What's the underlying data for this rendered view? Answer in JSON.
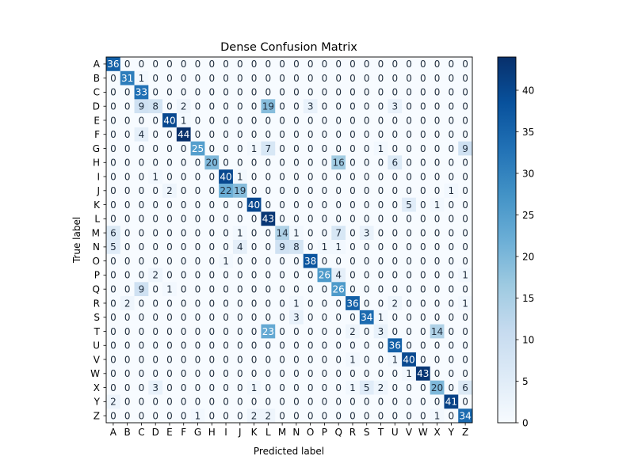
{
  "chart_data": {
    "type": "heatmap",
    "title": "Dense Confusion Matrix",
    "xlabel": "Predicted label",
    "ylabel": "True label",
    "x_categories": [
      "A",
      "B",
      "C",
      "D",
      "E",
      "F",
      "G",
      "H",
      "I",
      "J",
      "K",
      "L",
      "M",
      "N",
      "O",
      "P",
      "Q",
      "R",
      "S",
      "T",
      "U",
      "V",
      "W",
      "X",
      "Y",
      "Z"
    ],
    "y_categories": [
      "A",
      "B",
      "C",
      "D",
      "E",
      "F",
      "G",
      "H",
      "I",
      "J",
      "K",
      "L",
      "M",
      "N",
      "O",
      "P",
      "Q",
      "R",
      "S",
      "T",
      "U",
      "V",
      "W",
      "X",
      "Y",
      "Z"
    ],
    "values": [
      [
        36,
        0,
        0,
        0,
        0,
        0,
        0,
        0,
        0,
        0,
        0,
        0,
        0,
        0,
        0,
        0,
        0,
        0,
        0,
        0,
        0,
        0,
        0,
        0,
        0,
        0
      ],
      [
        0,
        31,
        1,
        0,
        0,
        0,
        0,
        0,
        0,
        0,
        0,
        0,
        0,
        0,
        0,
        0,
        0,
        0,
        0,
        0,
        0,
        0,
        0,
        0,
        0,
        0
      ],
      [
        0,
        0,
        33,
        0,
        0,
        0,
        0,
        0,
        0,
        0,
        0,
        0,
        0,
        0,
        0,
        0,
        0,
        0,
        0,
        0,
        0,
        0,
        0,
        0,
        0,
        0
      ],
      [
        0,
        0,
        9,
        8,
        0,
        2,
        0,
        0,
        0,
        0,
        0,
        19,
        0,
        0,
        3,
        0,
        0,
        0,
        0,
        0,
        3,
        0,
        0,
        0,
        0,
        0
      ],
      [
        0,
        0,
        0,
        0,
        40,
        1,
        0,
        0,
        0,
        0,
        0,
        0,
        0,
        0,
        0,
        0,
        0,
        0,
        0,
        0,
        0,
        0,
        0,
        0,
        0,
        0
      ],
      [
        0,
        0,
        4,
        0,
        0,
        44,
        0,
        0,
        0,
        0,
        0,
        0,
        0,
        0,
        0,
        0,
        0,
        0,
        0,
        0,
        0,
        0,
        0,
        0,
        0,
        0
      ],
      [
        0,
        0,
        0,
        0,
        0,
        0,
        25,
        0,
        0,
        0,
        1,
        7,
        0,
        0,
        0,
        0,
        0,
        0,
        0,
        1,
        0,
        0,
        0,
        0,
        0,
        9
      ],
      [
        0,
        0,
        0,
        0,
        0,
        0,
        0,
        20,
        0,
        0,
        0,
        0,
        0,
        0,
        0,
        0,
        16,
        0,
        0,
        0,
        6,
        0,
        0,
        0,
        0,
        0
      ],
      [
        0,
        0,
        0,
        1,
        0,
        0,
        0,
        0,
        40,
        1,
        0,
        0,
        0,
        0,
        0,
        0,
        0,
        0,
        0,
        0,
        0,
        0,
        0,
        0,
        0,
        0
      ],
      [
        0,
        0,
        0,
        0,
        2,
        0,
        0,
        0,
        22,
        19,
        0,
        0,
        0,
        0,
        0,
        0,
        0,
        0,
        0,
        0,
        0,
        0,
        0,
        0,
        1,
        0
      ],
      [
        0,
        0,
        0,
        0,
        0,
        0,
        0,
        0,
        0,
        0,
        40,
        0,
        0,
        0,
        0,
        0,
        0,
        0,
        0,
        0,
        0,
        5,
        0,
        1,
        0,
        0
      ],
      [
        0,
        0,
        0,
        0,
        0,
        0,
        0,
        0,
        0,
        0,
        0,
        43,
        0,
        0,
        0,
        0,
        0,
        0,
        0,
        0,
        0,
        0,
        0,
        0,
        0,
        0
      ],
      [
        6,
        0,
        0,
        0,
        0,
        0,
        0,
        0,
        0,
        1,
        0,
        0,
        14,
        1,
        0,
        0,
        7,
        0,
        3,
        0,
        0,
        0,
        0,
        0,
        0,
        0
      ],
      [
        5,
        0,
        0,
        0,
        0,
        0,
        0,
        0,
        0,
        4,
        0,
        0,
        9,
        8,
        0,
        1,
        1,
        0,
        0,
        0,
        0,
        0,
        0,
        0,
        0,
        0
      ],
      [
        0,
        0,
        0,
        0,
        0,
        0,
        0,
        0,
        1,
        0,
        0,
        0,
        0,
        0,
        38,
        0,
        0,
        0,
        0,
        0,
        0,
        0,
        0,
        0,
        0,
        0
      ],
      [
        0,
        0,
        0,
        2,
        0,
        0,
        0,
        0,
        0,
        0,
        0,
        0,
        0,
        0,
        0,
        26,
        4,
        0,
        0,
        0,
        0,
        0,
        0,
        0,
        0,
        1
      ],
      [
        0,
        0,
        9,
        0,
        1,
        0,
        0,
        0,
        0,
        0,
        0,
        0,
        0,
        0,
        0,
        0,
        26,
        0,
        0,
        0,
        0,
        0,
        0,
        0,
        0,
        0
      ],
      [
        0,
        2,
        0,
        0,
        0,
        0,
        0,
        0,
        0,
        0,
        0,
        0,
        0,
        1,
        0,
        0,
        0,
        36,
        0,
        0,
        2,
        0,
        0,
        0,
        0,
        1
      ],
      [
        0,
        0,
        0,
        0,
        0,
        0,
        0,
        0,
        0,
        0,
        0,
        0,
        0,
        3,
        0,
        0,
        0,
        0,
        34,
        1,
        0,
        0,
        0,
        0,
        0,
        0
      ],
      [
        0,
        0,
        0,
        0,
        0,
        0,
        0,
        0,
        0,
        0,
        0,
        23,
        0,
        0,
        0,
        0,
        0,
        2,
        0,
        3,
        0,
        0,
        0,
        14,
        0,
        0
      ],
      [
        0,
        0,
        0,
        0,
        0,
        0,
        0,
        0,
        0,
        0,
        0,
        0,
        0,
        0,
        0,
        0,
        0,
        0,
        0,
        0,
        36,
        0,
        0,
        0,
        0,
        0
      ],
      [
        0,
        0,
        0,
        0,
        0,
        0,
        0,
        0,
        0,
        0,
        0,
        0,
        0,
        0,
        0,
        0,
        0,
        1,
        0,
        0,
        1,
        40,
        0,
        0,
        0,
        0
      ],
      [
        0,
        0,
        0,
        0,
        0,
        0,
        0,
        0,
        0,
        0,
        0,
        0,
        0,
        0,
        0,
        0,
        0,
        0,
        0,
        0,
        0,
        1,
        43,
        0,
        0,
        0
      ],
      [
        0,
        0,
        0,
        3,
        0,
        0,
        0,
        0,
        0,
        0,
        1,
        0,
        0,
        0,
        0,
        0,
        0,
        1,
        5,
        2,
        0,
        0,
        0,
        20,
        0,
        6
      ],
      [
        2,
        0,
        0,
        0,
        0,
        0,
        0,
        0,
        0,
        0,
        0,
        0,
        0,
        0,
        0,
        0,
        0,
        0,
        0,
        0,
        0,
        0,
        0,
        0,
        41,
        0
      ],
      [
        0,
        0,
        0,
        0,
        0,
        0,
        1,
        0,
        0,
        0,
        2,
        2,
        0,
        0,
        0,
        0,
        0,
        0,
        0,
        0,
        0,
        0,
        0,
        1,
        0,
        34
      ]
    ],
    "colormap": "Blues",
    "color_range": [
      0,
      44
    ],
    "colorbar_ticks": [
      0,
      5,
      10,
      15,
      20,
      25,
      30,
      35,
      40
    ],
    "grid": false,
    "colorbar_position": "right"
  },
  "colors": {
    "text_dark": "#1f2d3d",
    "text_light": "#ffffff",
    "axis": "#000000"
  }
}
